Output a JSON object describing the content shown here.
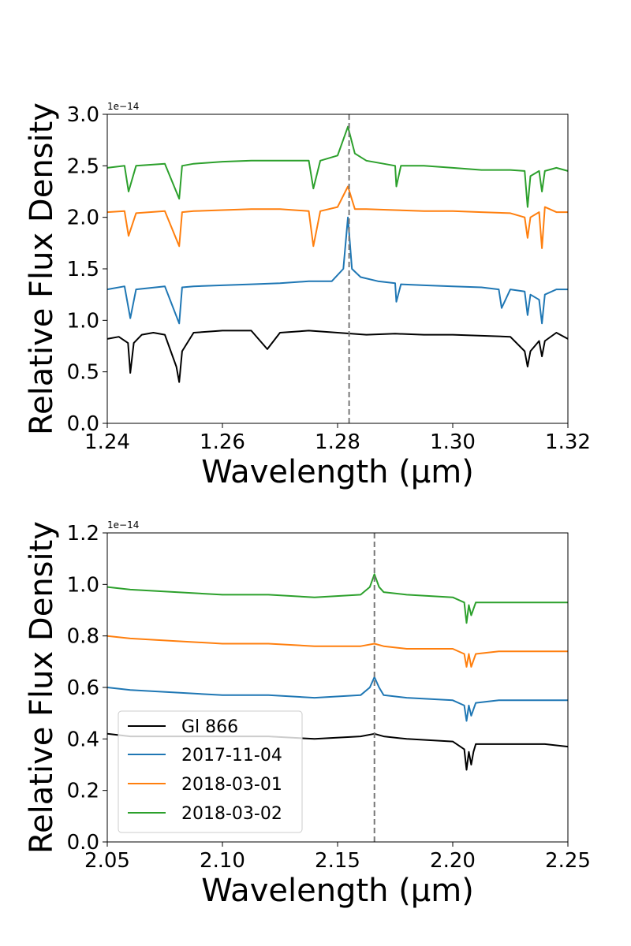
{
  "chart_data": [
    {
      "type": "line",
      "xlabel": "Wavelength (μm)",
      "ylabel": "Relative Flux Density",
      "offset_label": "1e−14",
      "xlim": [
        1.24,
        1.32
      ],
      "ylim": [
        0.0,
        3.0
      ],
      "x_ticks": [
        "1.24",
        "1.26",
        "1.28",
        "1.30",
        "1.32"
      ],
      "y_ticks": [
        "0.0",
        "0.5",
        "1.0",
        "1.5",
        "2.0",
        "2.5",
        "3.0"
      ],
      "vline": 1.282,
      "grid": false,
      "series": [
        {
          "name": "Gl 866",
          "color": "#000000",
          "x": [
            1.24,
            1.242,
            1.2436,
            1.244,
            1.2446,
            1.246,
            1.248,
            1.25,
            1.252,
            1.2525,
            1.253,
            1.255,
            1.26,
            1.265,
            1.2678,
            1.27,
            1.275,
            1.28,
            1.285,
            1.29,
            1.295,
            1.3,
            1.305,
            1.31,
            1.3125,
            1.313,
            1.3135,
            1.315,
            1.3155,
            1.316,
            1.318,
            1.32
          ],
          "y": [
            0.82,
            0.84,
            0.78,
            0.49,
            0.78,
            0.86,
            0.88,
            0.86,
            0.55,
            0.4,
            0.7,
            0.88,
            0.9,
            0.9,
            0.72,
            0.88,
            0.9,
            0.88,
            0.86,
            0.87,
            0.86,
            0.86,
            0.85,
            0.84,
            0.7,
            0.55,
            0.7,
            0.8,
            0.65,
            0.8,
            0.88,
            0.82
          ]
        },
        {
          "name": "2017-11-04",
          "color": "#1f77b4",
          "x": [
            1.24,
            1.243,
            1.244,
            1.245,
            1.25,
            1.2525,
            1.253,
            1.255,
            1.26,
            1.265,
            1.27,
            1.275,
            1.279,
            1.281,
            1.2818,
            1.2825,
            1.284,
            1.287,
            1.29,
            1.2902,
            1.291,
            1.295,
            1.3,
            1.305,
            1.308,
            1.3085,
            1.31,
            1.3125,
            1.313,
            1.3135,
            1.315,
            1.3155,
            1.316,
            1.318,
            1.32
          ],
          "y": [
            1.3,
            1.33,
            1.02,
            1.3,
            1.33,
            0.97,
            1.32,
            1.33,
            1.34,
            1.35,
            1.36,
            1.38,
            1.38,
            1.5,
            2.0,
            1.5,
            1.42,
            1.38,
            1.36,
            1.18,
            1.35,
            1.34,
            1.33,
            1.32,
            1.3,
            1.12,
            1.3,
            1.28,
            1.05,
            1.25,
            1.2,
            0.97,
            1.25,
            1.3,
            1.3
          ]
        },
        {
          "name": "2018-03-01",
          "color": "#ff7f0e",
          "x": [
            1.24,
            1.243,
            1.2437,
            1.245,
            1.25,
            1.2525,
            1.253,
            1.255,
            1.26,
            1.265,
            1.27,
            1.275,
            1.2758,
            1.277,
            1.28,
            1.2818,
            1.283,
            1.285,
            1.29,
            1.295,
            1.3,
            1.305,
            1.31,
            1.3125,
            1.313,
            1.3135,
            1.315,
            1.3155,
            1.316,
            1.318,
            1.32
          ],
          "y": [
            2.05,
            2.06,
            1.82,
            2.04,
            2.06,
            1.72,
            2.05,
            2.06,
            2.07,
            2.08,
            2.08,
            2.06,
            1.72,
            2.06,
            2.1,
            2.3,
            2.08,
            2.08,
            2.07,
            2.06,
            2.06,
            2.05,
            2.04,
            2.0,
            1.8,
            2.0,
            2.05,
            1.7,
            2.1,
            2.05,
            2.05
          ]
        },
        {
          "name": "2018-03-02",
          "color": "#2ca02c",
          "x": [
            1.24,
            1.243,
            1.2437,
            1.245,
            1.25,
            1.2525,
            1.253,
            1.255,
            1.26,
            1.265,
            1.27,
            1.275,
            1.2758,
            1.277,
            1.28,
            1.2818,
            1.283,
            1.285,
            1.29,
            1.2902,
            1.291,
            1.295,
            1.3,
            1.305,
            1.31,
            1.3125,
            1.313,
            1.3135,
            1.315,
            1.3155,
            1.316,
            1.318,
            1.32
          ],
          "y": [
            2.48,
            2.5,
            2.25,
            2.5,
            2.52,
            2.18,
            2.5,
            2.52,
            2.54,
            2.55,
            2.55,
            2.55,
            2.28,
            2.55,
            2.6,
            2.88,
            2.62,
            2.55,
            2.5,
            2.3,
            2.5,
            2.5,
            2.48,
            2.46,
            2.46,
            2.45,
            2.1,
            2.4,
            2.45,
            2.25,
            2.45,
            2.48,
            2.45
          ]
        }
      ]
    },
    {
      "type": "line",
      "xlabel": "Wavelength (μm)",
      "ylabel": "Relative Flux Density",
      "offset_label": "1e−14",
      "xlim": [
        2.05,
        2.25
      ],
      "ylim": [
        0.0,
        1.2
      ],
      "x_ticks": [
        "2.05",
        "2.10",
        "2.15",
        "2.20",
        "2.25"
      ],
      "y_ticks": [
        "0.0",
        "0.2",
        "0.4",
        "0.6",
        "0.8",
        "1.0",
        "1.2"
      ],
      "vline": 2.166,
      "grid": false,
      "legend": "lower-left",
      "series": [
        {
          "name": "Gl 866",
          "color": "#000000",
          "x": [
            2.05,
            2.06,
            2.08,
            2.1,
            2.12,
            2.14,
            2.16,
            2.166,
            2.17,
            2.18,
            2.2,
            2.205,
            2.206,
            2.207,
            2.208,
            2.209,
            2.21,
            2.22,
            2.23,
            2.24,
            2.25
          ],
          "y": [
            0.42,
            0.41,
            0.41,
            0.41,
            0.41,
            0.4,
            0.41,
            0.42,
            0.41,
            0.4,
            0.39,
            0.36,
            0.28,
            0.35,
            0.3,
            0.35,
            0.38,
            0.38,
            0.38,
            0.38,
            0.37
          ]
        },
        {
          "name": "2017-11-04",
          "color": "#1f77b4",
          "x": [
            2.05,
            2.06,
            2.08,
            2.1,
            2.12,
            2.14,
            2.16,
            2.164,
            2.166,
            2.168,
            2.17,
            2.18,
            2.2,
            2.205,
            2.206,
            2.207,
            2.208,
            2.21,
            2.22,
            2.23,
            2.24,
            2.25
          ],
          "y": [
            0.6,
            0.59,
            0.58,
            0.57,
            0.57,
            0.56,
            0.57,
            0.6,
            0.64,
            0.6,
            0.57,
            0.56,
            0.55,
            0.53,
            0.47,
            0.53,
            0.49,
            0.54,
            0.55,
            0.55,
            0.55,
            0.55
          ]
        },
        {
          "name": "2018-03-01",
          "color": "#ff7f0e",
          "x": [
            2.05,
            2.06,
            2.08,
            2.1,
            2.12,
            2.14,
            2.16,
            2.166,
            2.17,
            2.18,
            2.2,
            2.205,
            2.206,
            2.207,
            2.208,
            2.21,
            2.22,
            2.23,
            2.24,
            2.25
          ],
          "y": [
            0.8,
            0.79,
            0.78,
            0.77,
            0.77,
            0.76,
            0.76,
            0.77,
            0.76,
            0.75,
            0.75,
            0.73,
            0.68,
            0.73,
            0.68,
            0.73,
            0.74,
            0.74,
            0.74,
            0.74
          ]
        },
        {
          "name": "2018-03-02",
          "color": "#2ca02c",
          "x": [
            2.05,
            2.06,
            2.08,
            2.1,
            2.12,
            2.14,
            2.16,
            2.164,
            2.166,
            2.168,
            2.17,
            2.18,
            2.2,
            2.205,
            2.206,
            2.207,
            2.208,
            2.21,
            2.22,
            2.23,
            2.24,
            2.25
          ],
          "y": [
            0.99,
            0.98,
            0.97,
            0.96,
            0.96,
            0.95,
            0.96,
            0.99,
            1.04,
            0.99,
            0.97,
            0.96,
            0.95,
            0.93,
            0.85,
            0.92,
            0.88,
            0.93,
            0.93,
            0.93,
            0.93,
            0.93
          ]
        }
      ]
    }
  ]
}
